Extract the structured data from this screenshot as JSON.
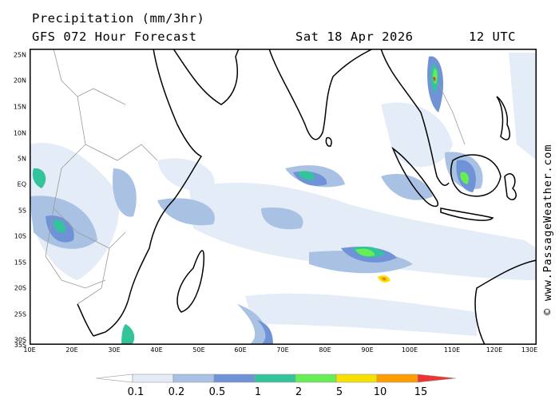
{
  "header": {
    "title": "Precipitation (mm/3hr)",
    "subtitle": "GFS 072 Hour Forecast",
    "date": "Sat 18 Apr 2026",
    "utc": "12 UTC"
  },
  "credit": "© www.PassageWeather.com",
  "latitude_labels": [
    "25N",
    "20N",
    "15N",
    "10N",
    "5N",
    "EQ",
    "5S",
    "10S",
    "15S",
    "20S",
    "25S",
    "30S",
    "35S"
  ],
  "longitude_labels": [
    "10E",
    "20E",
    "30E",
    "40E",
    "50E",
    "60E",
    "70E",
    "80E",
    "90E",
    "100E",
    "110E",
    "120E",
    "130E"
  ],
  "legend": {
    "labels": [
      "0.1",
      "0.2",
      "0.5",
      "1",
      "2",
      "5",
      "10",
      "15"
    ],
    "colors": [
      "#ffffff",
      "#e4ecf7",
      "#a9c2e4",
      "#6f93d6",
      "#33c49c",
      "#66ee55",
      "#f5e000",
      "#ff9d00",
      "#ee3333"
    ]
  },
  "map": {
    "region": "Indian Ocean",
    "lon_range": [
      10,
      130
    ],
    "lat_range": [
      -35,
      25
    ],
    "land_color": "#ffffff",
    "coastline_color": "#000000",
    "border_color": "#9a9a9a"
  }
}
